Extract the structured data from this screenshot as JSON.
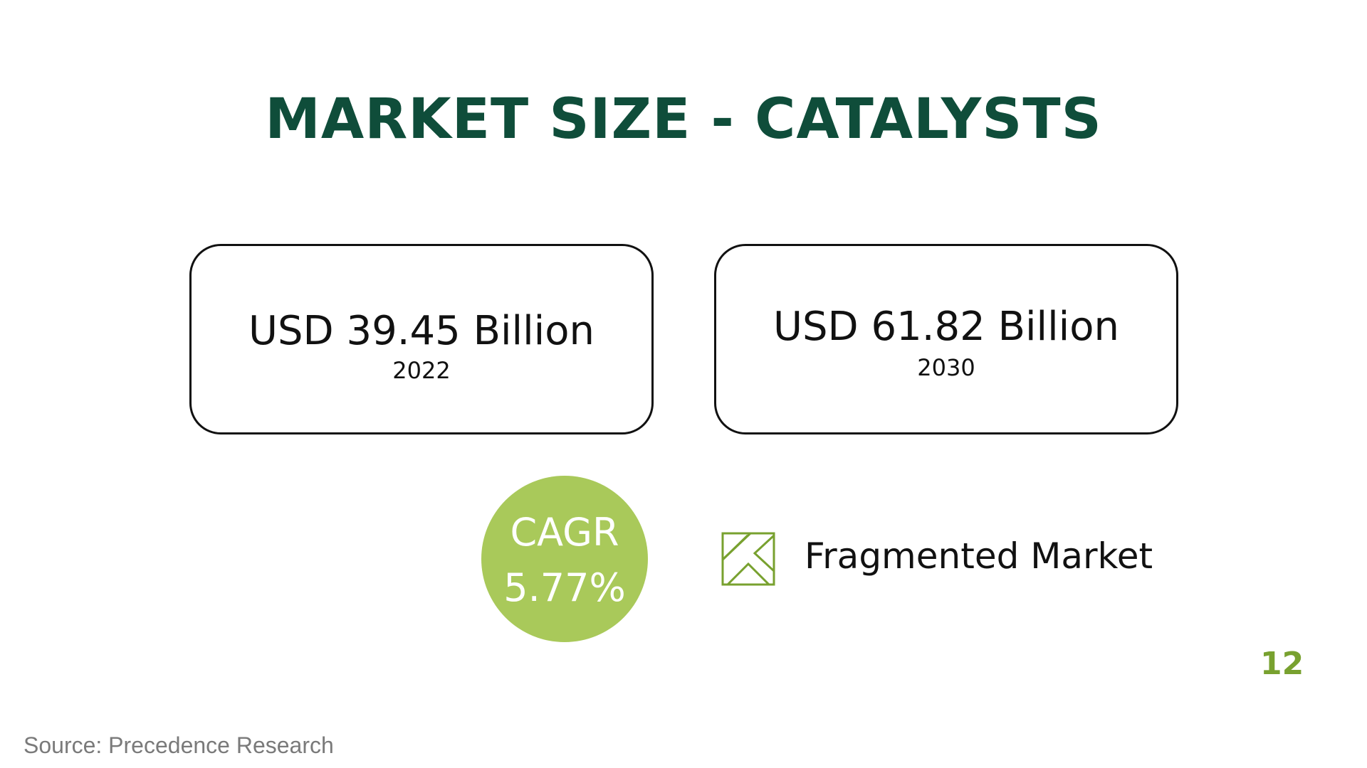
{
  "slide": {
    "title": "MARKET SIZE - CATALYSTS",
    "stats": [
      {
        "value": "USD 39.45 Billion",
        "year": "2022"
      },
      {
        "value": "USD 61.82 Billion",
        "year": "2030"
      }
    ],
    "cagr": {
      "label": "CAGR",
      "value": "5.77%"
    },
    "market_type": {
      "icon": "fragmented-market-icon",
      "label": "Fragmented Market"
    },
    "page_number": "12",
    "source": "Source: Precedence Research"
  },
  "colors": {
    "title": "#0f4d3a",
    "accent_green": "#a9c95a",
    "icon_green": "#78a12f",
    "page_number": "#78a12f",
    "source_text": "#7a7a7a",
    "box_border": "#111111"
  }
}
